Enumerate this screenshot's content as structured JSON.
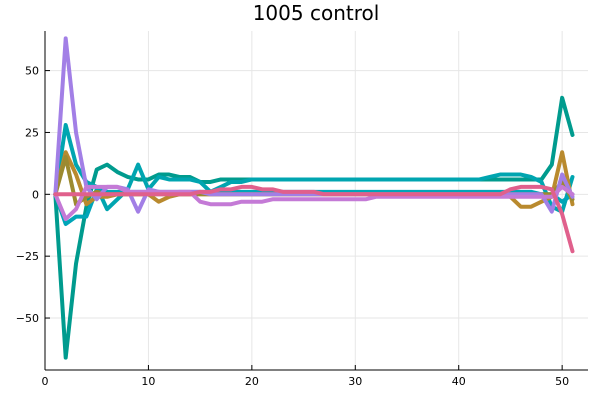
{
  "chart_data": {
    "type": "line",
    "title": "1005 control",
    "xlabel": "",
    "ylabel": "",
    "xlim": [
      0,
      52.5
    ],
    "ylim": [
      -71,
      66
    ],
    "xticks": [
      0,
      10,
      20,
      30,
      40,
      50
    ],
    "yticks": [
      -50,
      -25,
      0,
      25,
      50
    ],
    "grid": true,
    "legend": "none",
    "x": [
      1,
      2,
      3,
      4,
      5,
      6,
      7,
      8,
      9,
      10,
      11,
      12,
      13,
      14,
      15,
      16,
      17,
      18,
      19,
      20,
      21,
      22,
      23,
      24,
      25,
      26,
      27,
      28,
      29,
      30,
      31,
      32,
      33,
      34,
      35,
      36,
      37,
      38,
      39,
      40,
      41,
      42,
      43,
      44,
      45,
      46,
      47,
      48,
      49,
      50,
      51
    ],
    "series": [
      {
        "color": "#009b8e",
        "values": [
          0,
          -66,
          -28,
          -5,
          10,
          12,
          9,
          7,
          6,
          6,
          8,
          8,
          7,
          7,
          5,
          5,
          6,
          6,
          6,
          6,
          6,
          6,
          6,
          6,
          6,
          6,
          6,
          6,
          6,
          6,
          6,
          6,
          6,
          6,
          6,
          6,
          6,
          6,
          6,
          6,
          6,
          6,
          6,
          6,
          6,
          6,
          6,
          6,
          12,
          39,
          24
        ]
      },
      {
        "color": "#00a5b0",
        "values": [
          0,
          28,
          12,
          5,
          3,
          -6,
          -2,
          2,
          12,
          2,
          7,
          6,
          6,
          6,
          5,
          1,
          3,
          5,
          5,
          6,
          6,
          6,
          6,
          6,
          6,
          6,
          6,
          6,
          6,
          6,
          6,
          6,
          6,
          6,
          6,
          6,
          6,
          6,
          6,
          6,
          6,
          6,
          7,
          8,
          8,
          8,
          7,
          5,
          -5,
          -7,
          7
        ]
      },
      {
        "color": "#00a5b8",
        "values": [
          0,
          -12,
          -9,
          -9,
          2,
          1,
          1,
          1,
          1,
          1,
          1,
          1,
          1,
          1,
          1,
          1,
          1,
          1,
          1,
          1,
          1,
          1,
          1,
          1,
          1,
          1,
          1,
          1,
          1,
          1,
          1,
          1,
          1,
          1,
          1,
          1,
          1,
          1,
          1,
          1,
          1,
          1,
          1,
          1,
          1,
          1,
          1,
          0,
          0,
          -3,
          0
        ]
      },
      {
        "color": "#b98a2e",
        "values": [
          0,
          17,
          8,
          -4,
          -1,
          -1,
          0,
          0,
          0,
          0,
          -3,
          -1,
          0,
          0,
          0,
          0,
          0,
          0,
          0,
          0,
          0,
          0,
          0,
          0,
          0,
          0,
          0,
          0,
          0,
          0,
          0,
          0,
          0,
          0,
          0,
          0,
          0,
          0,
          0,
          0,
          0,
          0,
          0,
          0,
          -1,
          -5,
          -5,
          -3,
          -1,
          17,
          -4
        ]
      },
      {
        "color": "#9c8a30",
        "values": [
          0,
          15,
          -4,
          -1,
          1,
          0,
          0,
          0,
          0,
          0,
          0,
          0,
          0,
          0,
          0,
          0,
          0,
          0,
          0,
          0,
          0,
          0,
          0,
          0,
          0,
          0,
          0,
          0,
          0,
          0,
          0,
          0,
          0,
          0,
          0,
          0,
          0,
          0,
          0,
          0,
          0,
          0,
          0,
          0,
          0,
          0,
          0,
          0,
          0,
          5,
          -2
        ]
      },
      {
        "color": "#a27fe6",
        "values": [
          0,
          63,
          25,
          3,
          -2,
          3,
          3,
          2,
          -7,
          2,
          1,
          0,
          1,
          1,
          1,
          0,
          0,
          0,
          0,
          0,
          0,
          0,
          0,
          0,
          0,
          0,
          0,
          0,
          0,
          0,
          0,
          0,
          0,
          0,
          0,
          0,
          0,
          0,
          0,
          0,
          0,
          0,
          0,
          0,
          0,
          0,
          0,
          0,
          -7,
          8,
          -1
        ]
      },
      {
        "color": "#c47ad6",
        "values": [
          0,
          -10,
          -6,
          3,
          3,
          3,
          3,
          1,
          1,
          1,
          1,
          1,
          1,
          1,
          -3,
          -4,
          -4,
          -4,
          -3,
          -3,
          -3,
          -2,
          -2,
          -2,
          -2,
          -2,
          -2,
          -2,
          -2,
          -2,
          -2,
          -1,
          -1,
          -1,
          -1,
          -1,
          -1,
          -1,
          -1,
          -1,
          -1,
          -1,
          -1,
          -1,
          -1,
          -1,
          -1,
          -1,
          -1,
          3,
          0
        ]
      },
      {
        "color": "#e0608c",
        "values": [
          0,
          0,
          0,
          0,
          0,
          0,
          0,
          0,
          0,
          0,
          0,
          0,
          0,
          0,
          1,
          1,
          2,
          2,
          3,
          3,
          2,
          2,
          1,
          1,
          1,
          1,
          0,
          0,
          0,
          0,
          0,
          0,
          0,
          0,
          0,
          0,
          0,
          0,
          0,
          0,
          0,
          0,
          0,
          0,
          2,
          3,
          3,
          3,
          2,
          -8,
          -23
        ]
      }
    ]
  }
}
